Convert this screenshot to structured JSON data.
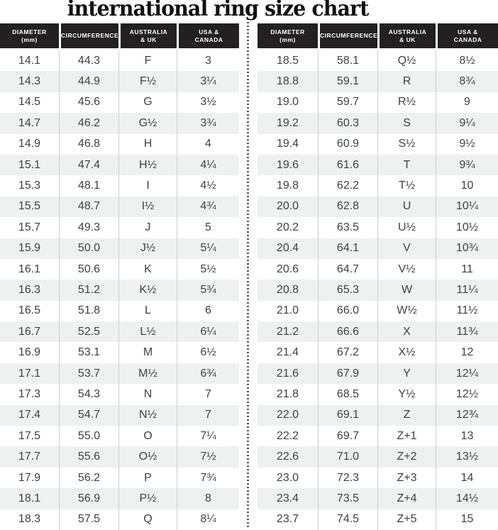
{
  "title": "international ring size chart",
  "header": {
    "columns": [
      [
        "DIAMETER",
        "(mm)"
      ],
      [
        "CIRCUMFERENCE",
        ""
      ],
      [
        "AUSTRALIA",
        "& UK"
      ],
      [
        "USA &",
        "CANADA"
      ]
    ]
  },
  "chart_data": {
    "type": "table",
    "title": "international ring size chart",
    "columns": [
      "DIAMETER (mm)",
      "CIRCUMFERENCE",
      "AUSTRALIA & UK",
      "USA & CANADA"
    ],
    "left_rows": [
      [
        "14.1",
        "44.3",
        "F",
        "3"
      ],
      [
        "14.3",
        "44.9",
        "F½",
        "3¼"
      ],
      [
        "14.5",
        "45.6",
        "G",
        "3½"
      ],
      [
        "14.7",
        "46.2",
        "G½",
        "3¾"
      ],
      [
        "14.9",
        "46.8",
        "H",
        "4"
      ],
      [
        "15.1",
        "47.4",
        "H½",
        "4¼"
      ],
      [
        "15.3",
        "48.1",
        "I",
        "4½"
      ],
      [
        "15.5",
        "48.7",
        "I½",
        "4¾"
      ],
      [
        "15.7",
        "49.3",
        "J",
        "5"
      ],
      [
        "15.9",
        "50.0",
        "J½",
        "5¼"
      ],
      [
        "16.1",
        "50.6",
        "K",
        "5½"
      ],
      [
        "16.3",
        "51.2",
        "K½",
        "5¾"
      ],
      [
        "16.5",
        "51.8",
        "L",
        "6"
      ],
      [
        "16.7",
        "52.5",
        "L½",
        "6¼"
      ],
      [
        "16.9",
        "53.1",
        "M",
        "6½"
      ],
      [
        "17.1",
        "53.7",
        "M½",
        "6¾"
      ],
      [
        "17.3",
        "54.3",
        "N",
        "7"
      ],
      [
        "17.4",
        "54.7",
        "N½",
        "7"
      ],
      [
        "17.5",
        "55.0",
        "O",
        "7¼"
      ],
      [
        "17.7",
        "55.6",
        "O½",
        "7½"
      ],
      [
        "17.9",
        "56.2",
        "P",
        "7¾"
      ],
      [
        "18.1",
        "56.9",
        "P½",
        "8"
      ],
      [
        "18.3",
        "57.5",
        "Q",
        "8¼"
      ]
    ],
    "right_rows": [
      [
        "18.5",
        "58.1",
        "Q½",
        "8½"
      ],
      [
        "18.8",
        "59.1",
        "R",
        "8¾"
      ],
      [
        "19.0",
        "59.7",
        "R½",
        "9"
      ],
      [
        "19.2",
        "60.3",
        "S",
        "9¼"
      ],
      [
        "19.4",
        "60.9",
        "S½",
        "9½"
      ],
      [
        "19.6",
        "61.6",
        "T",
        "9¾"
      ],
      [
        "19.8",
        "62.2",
        "T½",
        "10"
      ],
      [
        "20.0",
        "62.8",
        "U",
        "10¼"
      ],
      [
        "20.2",
        "63.5",
        "U½",
        "10½"
      ],
      [
        "20.4",
        "64.1",
        "V",
        "10¾"
      ],
      [
        "20.6",
        "64.7",
        "V½",
        "11"
      ],
      [
        "20.8",
        "65.3",
        "W",
        "11¼"
      ],
      [
        "21.0",
        "66.0",
        "W½",
        "11½"
      ],
      [
        "21.2",
        "66.6",
        "X",
        "11¾"
      ],
      [
        "21.4",
        "67.2",
        "X½",
        "12"
      ],
      [
        "21.6",
        "67.9",
        "Y",
        "12¼"
      ],
      [
        "21.8",
        "68.5",
        "Y½",
        "12½"
      ],
      [
        "22.0",
        "69.1",
        "Z",
        "12¾"
      ],
      [
        "22.2",
        "69.7",
        "Z+1",
        "13"
      ],
      [
        "22.6",
        "71.0",
        "Z+2",
        "13½"
      ],
      [
        "23.0",
        "72.3",
        "Z+3",
        "14"
      ],
      [
        "23.4",
        "73.5",
        "Z+4",
        "14½"
      ],
      [
        "23.7",
        "74.5",
        "Z+5",
        "15"
      ]
    ]
  },
  "colors": {
    "header_bg": "#232021",
    "header_text": "#ffffff",
    "stripe": "#eff0f0",
    "body_text": "#3e3f41",
    "column_line": "#cdcfcf",
    "divider_dot": "#58595b",
    "title_text": "#121011"
  }
}
